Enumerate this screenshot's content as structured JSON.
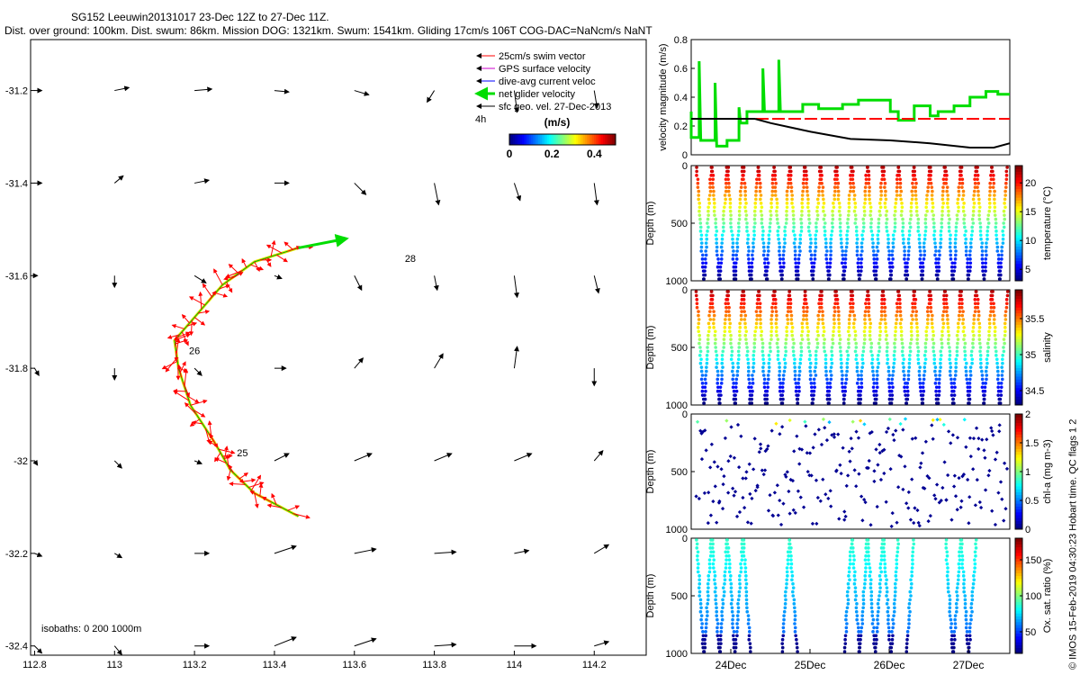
{
  "header": {
    "line1": "SG152 Leeuwin20131017 23-Dec 12Z to 27-Dec 11Z.",
    "line2": "Dist. over ground: 100km. Dist. swum: 86km. Mission DOG: 1321km. Swum: 1541km. Gliding 17cm/s 106T COG-DAC=NaNcm/s NaNT"
  },
  "credit": "© IMOS 15-Feb-2019 04:30:23 Hobart time. QC flags 1  2",
  "colors": {
    "swim": "#ff0000",
    "gps": "#cc00cc",
    "dac": "#0000ff",
    "net": "#00dd00",
    "geo": "#000000",
    "track": "#e6e600"
  },
  "chart_data": [
    {
      "type": "scatter",
      "name": "map",
      "x_ticks": [
        "112.8",
        "113",
        "113.2",
        "113.4",
        "113.6",
        "113.8",
        "114",
        "114.2"
      ],
      "y_ticks": [
        "-31.2",
        "-31.4",
        "-31.6",
        "-31.8",
        "-32",
        "-32.2",
        "-32.4"
      ],
      "xlim": [
        112.79,
        114.33
      ],
      "ylim": [
        -32.42,
        -31.09
      ],
      "legend": {
        "placement": "top-right",
        "entries": [
          "25cm/s swim vector",
          "GPS surface velocity",
          "dive-avg current veloc",
          "net glider velocity",
          "sfc geo. vel. 27-Dec-2013"
        ],
        "extra": "4h"
      },
      "colorbar": {
        "label": "(m/s)",
        "ticks": [
          "0",
          "0.2",
          "0.4"
        ],
        "range": [
          0,
          0.5
        ]
      },
      "isobath_text": "isobaths: 0   200  1000m",
      "contour_labels": [
        {
          "text": "28",
          "x": 113.74,
          "y": -31.57
        },
        {
          "text": "26",
          "x": 113.2,
          "y": -31.77
        },
        {
          "text": "25",
          "x": 113.32,
          "y": -31.99
        }
      ],
      "track": [
        [
          113.46,
          -31.54
        ],
        [
          113.35,
          -31.57
        ],
        [
          113.27,
          -31.62
        ],
        [
          113.2,
          -31.69
        ],
        [
          113.15,
          -31.74
        ],
        [
          113.16,
          -31.8
        ],
        [
          113.19,
          -31.88
        ],
        [
          113.25,
          -31.96
        ],
        [
          113.29,
          -32.02
        ],
        [
          113.35,
          -32.07
        ],
        [
          113.46,
          -32.12
        ]
      ],
      "net_velocity_arrow": [
        [
          113.46,
          -31.54
        ],
        [
          113.58,
          -31.52
        ]
      ],
      "geo_grid_x": [
        112.8,
        113.0,
        113.2,
        113.4,
        113.6,
        113.8,
        114.0,
        114.2
      ],
      "geo_grid_y": [
        -31.2,
        -31.4,
        -31.6,
        -31.8,
        -32.0,
        -32.2,
        -32.4
      ],
      "geo_vectors": [
        [
          [
            0.05,
            0
          ],
          [
            0.1,
            0.02
          ],
          [
            0.12,
            0.01
          ],
          [
            0.1,
            -0.01
          ],
          [
            0.1,
            -0.03
          ],
          [
            -0.05,
            -0.08
          ],
          [
            0.02,
            -0.15
          ],
          [
            0.02,
            -0.12
          ]
        ],
        [
          [
            0.05,
            0
          ],
          [
            0.06,
            0.05
          ],
          [
            0.1,
            0.02
          ],
          [
            0.1,
            0
          ],
          [
            0.08,
            -0.08
          ],
          [
            0.03,
            -0.15
          ],
          [
            0.04,
            -0.12
          ],
          [
            0.02,
            -0.15
          ]
        ],
        [
          [
            0.02,
            0
          ],
          [
            0.0,
            -0.08
          ],
          [
            0.08,
            -0.05
          ],
          [
            0.05,
            -0.02
          ],
          [
            0.05,
            -0.1
          ],
          [
            0.02,
            -0.1
          ],
          [
            0.02,
            -0.15
          ],
          [
            0.03,
            -0.12
          ]
        ],
        [
          [
            0.03,
            -0.05
          ],
          [
            0.0,
            -0.08
          ],
          [
            0.05,
            -0.05
          ],
          [
            0.08,
            0
          ],
          [
            0.06,
            0.07
          ],
          [
            0.06,
            0.1
          ],
          [
            0.02,
            0.15
          ],
          [
            0.0,
            -0.12
          ]
        ],
        [
          [
            0.02,
            -0.03
          ],
          [
            0.05,
            -0.05
          ],
          [
            0.05,
            -0.02
          ],
          [
            0.1,
            0.05
          ],
          [
            0.12,
            0.05
          ],
          [
            0.12,
            0.05
          ],
          [
            0.12,
            0.05
          ],
          [
            0.06,
            0.07
          ]
        ],
        [
          [
            0.05,
            -0.02
          ],
          [
            0.05,
            -0.03
          ],
          [
            0.1,
            0
          ],
          [
            0.15,
            0.05
          ],
          [
            0.15,
            0.03
          ],
          [
            0.15,
            0.01
          ],
          [
            0.1,
            0.02
          ],
          [
            0.1,
            0.06
          ]
        ],
        [
          [
            0.05,
            -0.05
          ],
          [
            0.05,
            -0.06
          ],
          [
            0.1,
            0
          ],
          [
            0.15,
            0.06
          ],
          [
            0.15,
            0.05
          ],
          [
            0.15,
            0.01
          ],
          [
            0.15,
            0
          ],
          [
            0.1,
            0.03
          ]
        ]
      ]
    },
    {
      "type": "line",
      "name": "velocity",
      "ylabel": "velocity magnitude (m/s)",
      "y_ticks": [
        "0",
        "0.2",
        "0.4",
        "0.6",
        "0.8"
      ],
      "ylim": [
        0,
        0.8
      ],
      "xlim": [
        0,
        4.0
      ],
      "series": [
        {
          "color": "#00dd00",
          "points": [
            [
              0,
              0.3
            ],
            [
              0,
              0.12
            ],
            [
              0.1,
              0.12
            ],
            [
              0.1,
              0.65
            ],
            [
              0.12,
              0.1
            ],
            [
              0.3,
              0.1
            ],
            [
              0.3,
              0.5
            ],
            [
              0.32,
              0.06
            ],
            [
              0.45,
              0.06
            ],
            [
              0.45,
              0.1
            ],
            [
              0.6,
              0.1
            ],
            [
              0.6,
              0.33
            ],
            [
              0.62,
              0.22
            ],
            [
              0.7,
              0.22
            ],
            [
              0.7,
              0.3
            ],
            [
              0.9,
              0.3
            ],
            [
              0.9,
              0.6
            ],
            [
              0.92,
              0.3
            ],
            [
              1.1,
              0.3
            ],
            [
              1.1,
              0.66
            ],
            [
              1.12,
              0.3
            ],
            [
              1.4,
              0.3
            ],
            [
              1.4,
              0.35
            ],
            [
              1.6,
              0.35
            ],
            [
              1.6,
              0.32
            ],
            [
              1.9,
              0.32
            ],
            [
              1.9,
              0.35
            ],
            [
              2.1,
              0.35
            ],
            [
              2.1,
              0.38
            ],
            [
              2.5,
              0.38
            ],
            [
              2.5,
              0.3
            ],
            [
              2.6,
              0.3
            ],
            [
              2.6,
              0.24
            ],
            [
              2.8,
              0.24
            ],
            [
              2.8,
              0.34
            ],
            [
              3.0,
              0.34
            ],
            [
              3.0,
              0.27
            ],
            [
              3.1,
              0.27
            ],
            [
              3.1,
              0.3
            ],
            [
              3.3,
              0.3
            ],
            [
              3.3,
              0.34
            ],
            [
              3.5,
              0.34
            ],
            [
              3.5,
              0.4
            ],
            [
              3.7,
              0.4
            ],
            [
              3.7,
              0.44
            ],
            [
              3.85,
              0.44
            ],
            [
              3.85,
              0.42
            ],
            [
              4.0,
              0.42
            ]
          ]
        },
        {
          "color": "#ff0000",
          "dashed": true,
          "points": [
            [
              0,
              0.25
            ],
            [
              4.0,
              0.25
            ]
          ]
        },
        {
          "color": "#000000",
          "points": [
            [
              0,
              0.25
            ],
            [
              0.8,
              0.25
            ],
            [
              1.0,
              0.22
            ],
            [
              1.5,
              0.16
            ],
            [
              2.0,
              0.11
            ],
            [
              2.5,
              0.1
            ],
            [
              3.0,
              0.08
            ],
            [
              3.5,
              0.05
            ],
            [
              3.8,
              0.05
            ],
            [
              4.0,
              0.08
            ]
          ]
        }
      ]
    },
    {
      "type": "scatter",
      "name": "temperature",
      "ylabel": "Depth (m)",
      "y_ticks": [
        "0",
        "500",
        "1000"
      ],
      "cbar_label": "temperature (°C)",
      "cbar_ticks": [
        "5",
        "10",
        "15",
        "20"
      ],
      "cbar_range": [
        3,
        23
      ],
      "dives": 40,
      "mode": "full"
    },
    {
      "type": "scatter",
      "name": "salinity",
      "ylabel": "Depth (m)",
      "y_ticks": [
        "0",
        "500",
        "1000"
      ],
      "cbar_label": "salinity",
      "cbar_ticks": [
        "34.5",
        "35",
        "35.5"
      ],
      "cbar_range": [
        34.3,
        35.9
      ],
      "dives": 40,
      "mode": "full"
    },
    {
      "type": "scatter",
      "name": "chla",
      "ylabel": "Depth (m)",
      "y_ticks": [
        "0",
        "500",
        "1000"
      ],
      "cbar_label": "chl-a (mg m-3)",
      "cbar_ticks": [
        "0",
        "0.5",
        "1",
        "1.5",
        "2"
      ],
      "cbar_range": [
        0,
        2
      ],
      "dives": 40,
      "mode": "sparse"
    },
    {
      "type": "scatter",
      "name": "oxygen",
      "ylabel": "Depth (m)",
      "y_ticks": [
        "0",
        "500",
        "1000"
      ],
      "cbar_label": "Ox. sat. ratio (%)",
      "cbar_ticks": [
        "50",
        "100",
        "150"
      ],
      "cbar_range": [
        20,
        180
      ],
      "dives_present": [
        0,
        1,
        2,
        3,
        4,
        5,
        6,
        11,
        12,
        19,
        20,
        21,
        22,
        23,
        24,
        25,
        27,
        32,
        33,
        34,
        35
      ],
      "dives": 40,
      "mode": "full",
      "x_ticks": [
        "24Dec",
        "25Dec",
        "26Dec",
        "27Dec"
      ]
    }
  ]
}
